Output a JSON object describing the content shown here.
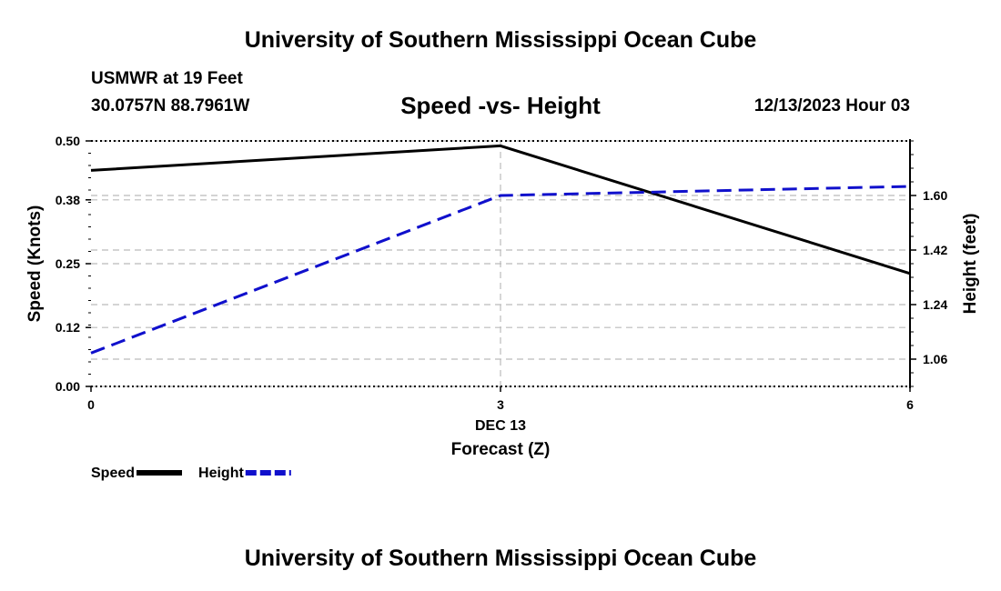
{
  "header": {
    "title": "University of Southern Mississippi Ocean Cube",
    "station": "USMWR at 19 Feet",
    "coords": "30.0757N  88.7961W",
    "datetime": "12/13/2023 Hour 03"
  },
  "footer": {
    "title": "University of Southern Mississippi Ocean Cube"
  },
  "chart_data": {
    "type": "line",
    "title": "Speed -vs- Height",
    "xlabel": "Forecast (Z)",
    "x": [
      0,
      3,
      6
    ],
    "x_tick_labels": [
      "0",
      "3",
      "6"
    ],
    "x_date_label": "DEC 13",
    "xlim": [
      0,
      6
    ],
    "y_left": {
      "label": "Speed (Knots)",
      "lim": [
        0.0,
        0.5
      ],
      "ticks": [
        "0.00",
        "0.12",
        "0.25",
        "0.38",
        "0.50"
      ]
    },
    "y_right": {
      "label": "Height (feet)",
      "lim": [
        0.97,
        1.78
      ],
      "ticks": [
        "1.06",
        "1.24",
        "1.42",
        "1.60"
      ]
    },
    "series": [
      {
        "name": "Speed",
        "axis": "left",
        "style": "solid",
        "color": "#000000",
        "values": [
          0.44,
          0.49,
          0.23
        ]
      },
      {
        "name": "Height",
        "axis": "right",
        "style": "dashed",
        "color": "#1010cc",
        "values": [
          1.08,
          1.6,
          1.63
        ]
      }
    ],
    "grid": true,
    "legend": "bottom-left"
  }
}
